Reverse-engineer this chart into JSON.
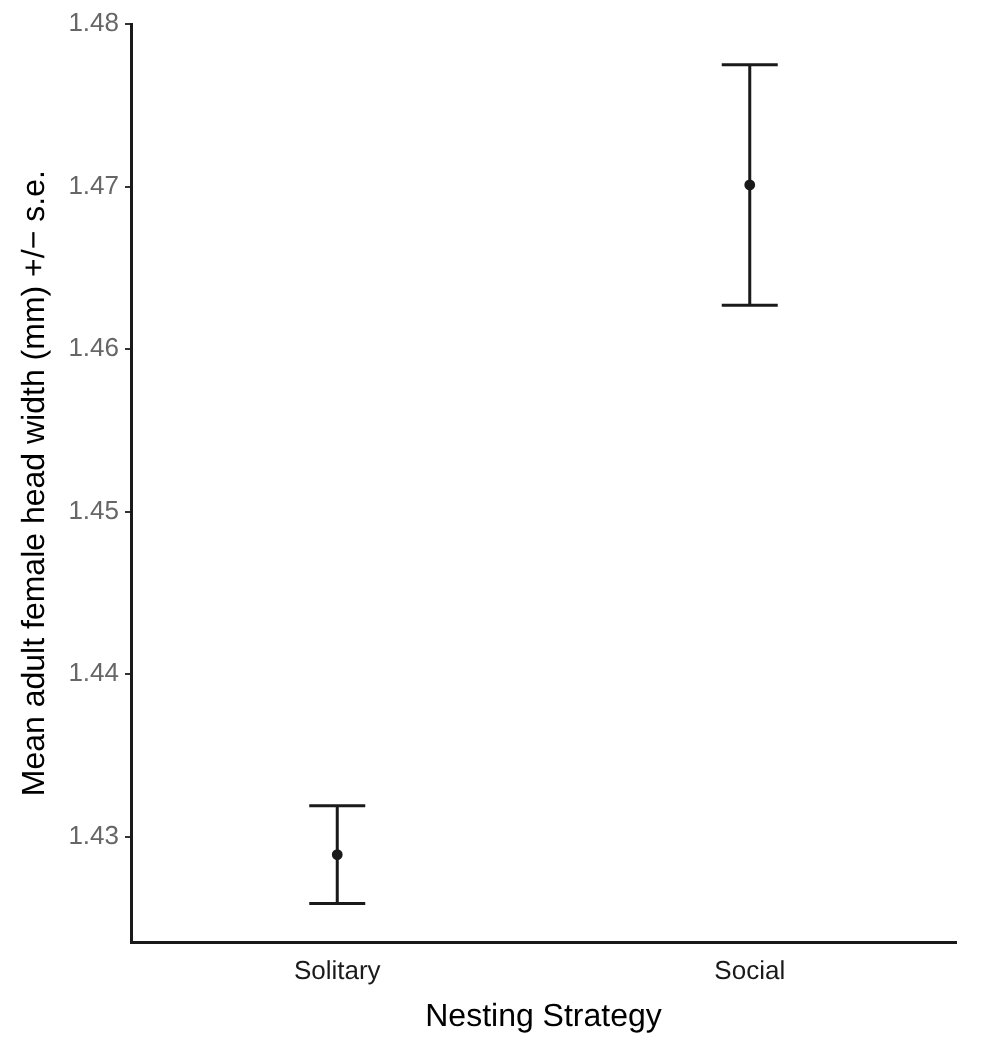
{
  "chart_data": {
    "type": "scatter",
    "xlabel": "Nesting Strategy",
    "ylabel": "Mean adult female head width (mm) +/− s.e.",
    "categories": [
      "Solitary",
      "Social"
    ],
    "series": [
      {
        "color": "#1a1a1a",
        "values": [
          1.4289,
          1.4701
        ],
        "errors": [
          0.003,
          0.0074
        ]
      }
    ],
    "ylim": [
      1.4235,
      1.48
    ],
    "yticks": [
      1.43,
      1.44,
      1.45,
      1.46,
      1.47,
      1.48
    ],
    "grid": false,
    "legend": false,
    "marker": "circle"
  }
}
